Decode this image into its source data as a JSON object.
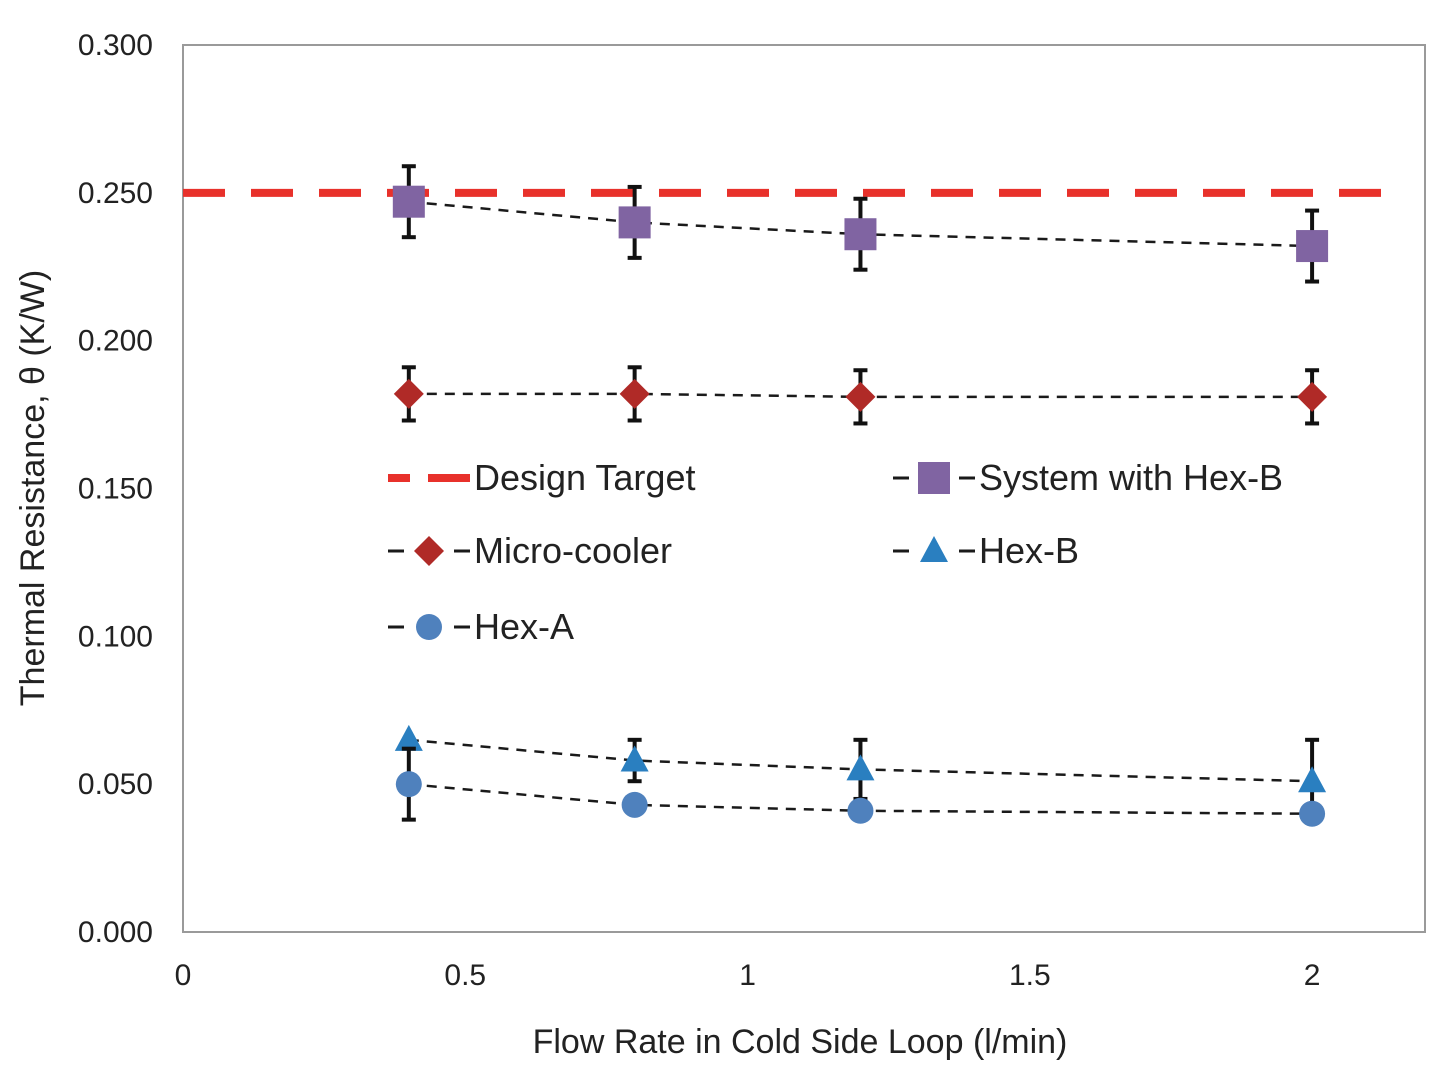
{
  "chart_data": {
    "type": "scatter",
    "xlabel": "Flow Rate in Cold Side Loop (l/min)",
    "ylabel": "Thermal Resistance, θ (K/W)",
    "xlim": [
      0,
      2.2
    ],
    "ylim": [
      0,
      0.3
    ],
    "x_ticks": [
      "0",
      "0.5",
      "1",
      "1.5",
      "2"
    ],
    "y_ticks": [
      "0.000",
      "0.050",
      "0.100",
      "0.150",
      "0.200",
      "0.250",
      "0.300"
    ],
    "grid": false,
    "legend_position": "center-inside",
    "series": [
      {
        "name": "Design Target",
        "kind": "reference-line",
        "color": "#e8312b",
        "line_style": "dashed-thick",
        "y": 0.25
      },
      {
        "name": "System with Hex-B",
        "marker": "square",
        "color": "#8064a2",
        "x": [
          0.4,
          0.8,
          1.2,
          2.0
        ],
        "y": [
          0.247,
          0.24,
          0.236,
          0.232
        ],
        "err": [
          0.012,
          0.012,
          0.012,
          0.012
        ]
      },
      {
        "name": "Micro-cooler",
        "marker": "diamond",
        "color": "#b02a27",
        "x": [
          0.4,
          0.8,
          1.2,
          2.0
        ],
        "y": [
          0.182,
          0.182,
          0.181,
          0.181
        ],
        "err": [
          0.009,
          0.009,
          0.009,
          0.009
        ]
      },
      {
        "name": "Hex-B",
        "marker": "triangle",
        "color": "#2a7fc0",
        "x": [
          0.4,
          0.8,
          1.2,
          2.0
        ],
        "y": [
          0.065,
          0.058,
          0.055,
          0.051
        ],
        "err": [
          0.0,
          0.007,
          0.01,
          0.014
        ]
      },
      {
        "name": "Hex-A",
        "marker": "circle",
        "color": "#4f81bd",
        "x": [
          0.4,
          0.8,
          1.2,
          2.0
        ],
        "y": [
          0.05,
          0.043,
          0.041,
          0.04
        ],
        "err": [
          0.012,
          0.0,
          0.0,
          0.0
        ]
      }
    ]
  }
}
